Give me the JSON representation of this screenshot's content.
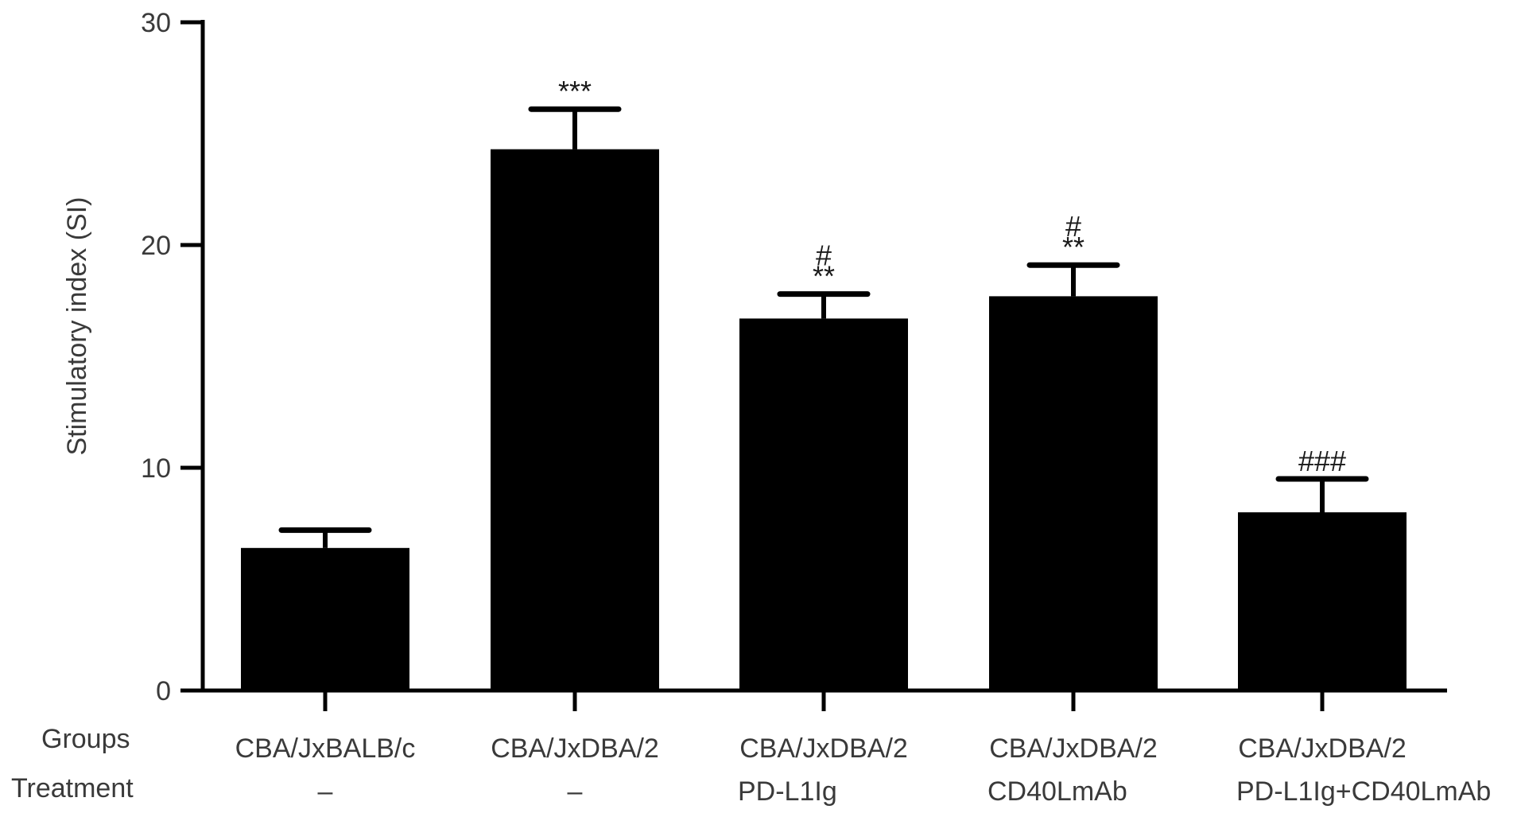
{
  "chart_data": {
    "type": "bar",
    "ylabel": "Stimulatory index (SI)",
    "ylim": [
      0,
      30
    ],
    "yticks": [
      "0",
      "10",
      "20",
      "30"
    ],
    "row_labels": {
      "groups": "Groups",
      "treatment": "Treatment"
    },
    "categories": [
      {
        "group": "CBA/JxBALB/c",
        "treatment": "–"
      },
      {
        "group": "CBA/JxDBA/2",
        "treatment": "–"
      },
      {
        "group": "CBA/JxDBA/2",
        "treatment": "PD-L1Ig"
      },
      {
        "group": "CBA/JxDBA/2",
        "treatment": "CD40LmAb"
      },
      {
        "group": "CBA/JxDBA/2",
        "treatment": "PD-L1Ig+CD40LmAb"
      }
    ],
    "values": [
      6.4,
      24.3,
      16.7,
      17.7,
      8.0
    ],
    "errors": [
      0.8,
      1.8,
      1.1,
      1.4,
      1.5
    ],
    "significance": [
      [],
      [
        "***"
      ],
      [
        "#",
        "**"
      ],
      [
        "#",
        "**"
      ],
      [
        "###"
      ]
    ],
    "bar_color": "#000000",
    "grid": false,
    "legend": "none"
  }
}
